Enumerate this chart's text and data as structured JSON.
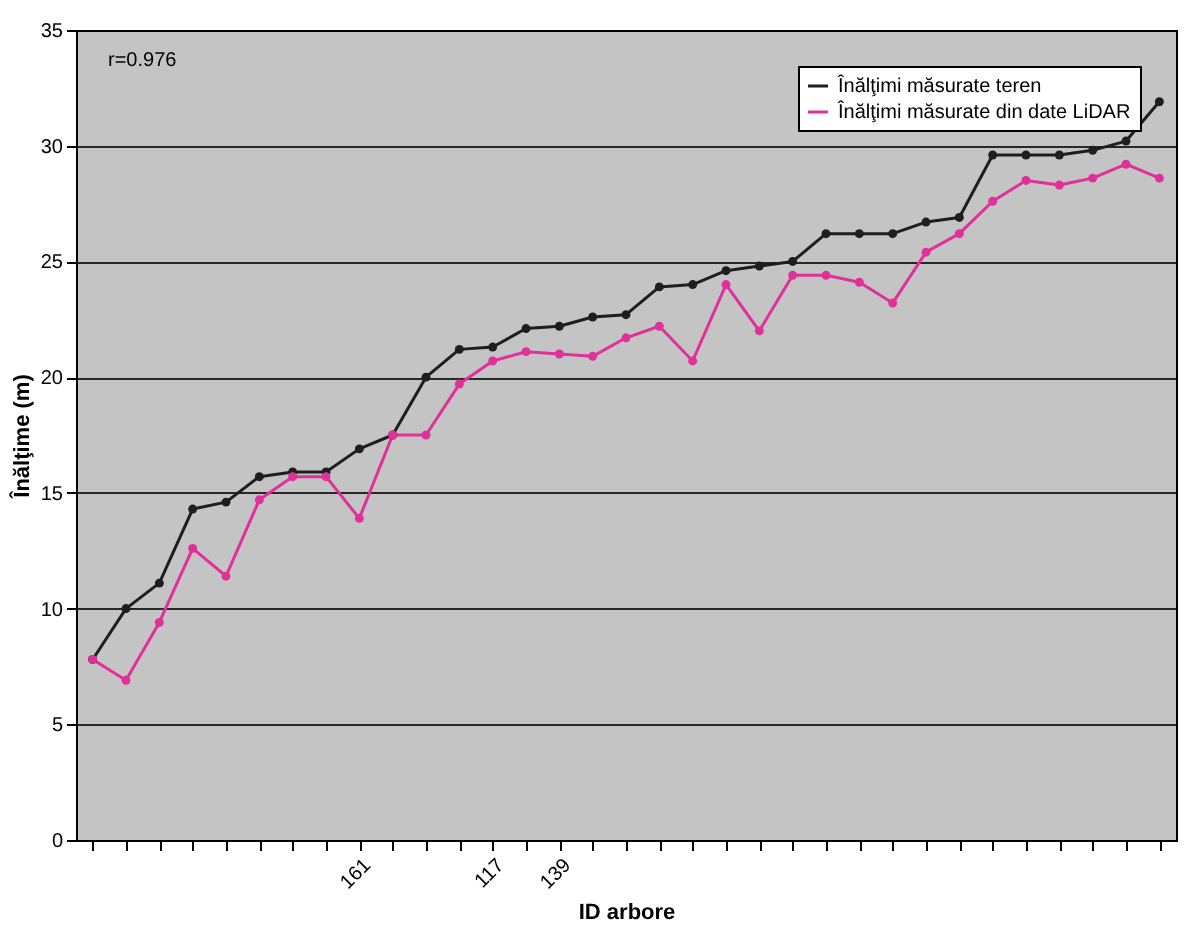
{
  "chart_data": {
    "type": "line",
    "xlabel": "ID arbore",
    "ylabel": "Înălţime (m)",
    "annotations": [
      "r=0.976"
    ],
    "categories": [
      null,
      null,
      null,
      null,
      null,
      null,
      null,
      null,
      "161",
      null,
      null,
      null,
      "117",
      null,
      "139",
      null,
      null,
      null,
      null,
      null,
      null,
      null,
      null,
      null,
      null,
      null,
      null,
      null,
      null,
      null,
      null,
      null,
      null
    ],
    "series": [
      {
        "name": "Înălţimi măsurate teren",
        "color": "#1e1e1e",
        "values": [
          7.8,
          10.0,
          11.1,
          14.3,
          14.6,
          15.7,
          15.9,
          15.9,
          16.9,
          17.5,
          20.0,
          21.2,
          21.3,
          22.1,
          22.2,
          22.6,
          22.7,
          23.9,
          24.0,
          24.6,
          24.8,
          25.0,
          26.2,
          26.2,
          26.2,
          26.7,
          26.9,
          29.6,
          29.6,
          29.6,
          29.8,
          30.2,
          31.9
        ]
      },
      {
        "name": "Înălţimi măsurate din date LiDAR",
        "color": "#e0309a",
        "values": [
          7.8,
          6.9,
          9.4,
          12.6,
          11.4,
          14.7,
          15.7,
          15.7,
          13.9,
          17.5,
          17.5,
          19.7,
          20.7,
          21.1,
          21.0,
          20.9,
          21.7,
          22.2,
          20.7,
          24.0,
          22.0,
          24.4,
          24.4,
          24.1,
          23.2,
          25.4,
          26.2,
          27.6,
          28.5,
          28.3,
          28.6,
          29.2,
          28.6
        ]
      }
    ],
    "ylim": [
      0,
      35
    ],
    "yticks": [
      0,
      5,
      10,
      15,
      20,
      25,
      30,
      35
    ],
    "grid": "y",
    "legend": "top right",
    "marker": "circle",
    "line_style": "solid"
  }
}
